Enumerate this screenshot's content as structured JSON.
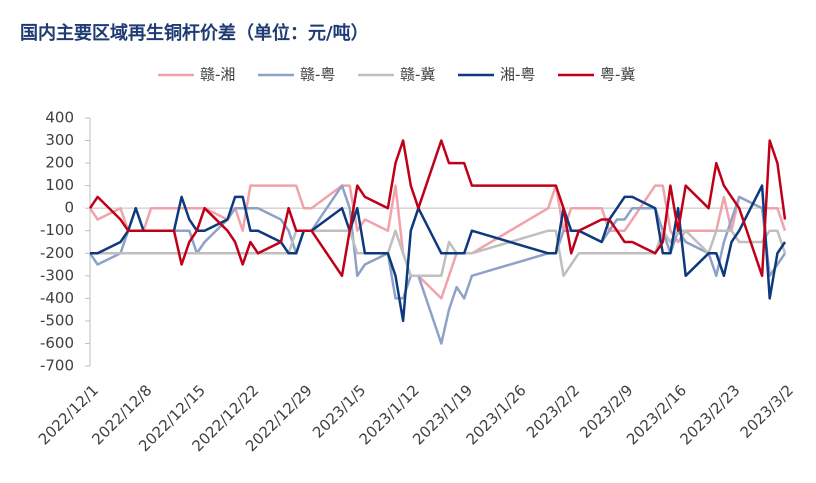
{
  "chart_data": {
    "type": "line",
    "title": "国内主要区域再生铜杆价差（单位：元/吨）",
    "x": [
      "2022/12/1",
      "2022/12/2",
      "2022/12/5",
      "2022/12/6",
      "2022/12/7",
      "2022/12/8",
      "2022/12/9",
      "2022/12/12",
      "2022/12/13",
      "2022/12/14",
      "2022/12/15",
      "2022/12/16",
      "2022/12/19",
      "2022/12/20",
      "2022/12/21",
      "2022/12/22",
      "2022/12/23",
      "2022/12/26",
      "2022/12/27",
      "2022/12/28",
      "2022/12/29",
      "2022/12/30",
      "2023/1/3",
      "2023/1/4",
      "2023/1/5",
      "2023/1/6",
      "2023/1/9",
      "2023/1/10",
      "2023/1/11",
      "2023/1/12",
      "2023/1/13",
      "2023/1/16",
      "2023/1/17",
      "2023/1/18",
      "2023/1/19",
      "2023/1/20",
      "2023/1/30",
      "2023/1/31",
      "2023/2/1",
      "2023/2/2",
      "2023/2/3",
      "2023/2/6",
      "2023/2/7",
      "2023/2/8",
      "2023/2/9",
      "2023/2/10",
      "2023/2/13",
      "2023/2/14",
      "2023/2/15",
      "2023/2/16",
      "2023/2/17",
      "2023/2/20",
      "2023/2/21",
      "2023/2/22",
      "2023/2/23",
      "2023/2/24",
      "2023/2/27",
      "2023/2/28",
      "2023/3/1",
      "2023/3/2"
    ],
    "series": [
      {
        "name": "赣-湘",
        "color": "#f0a3ab",
        "values": [
          0,
          -50,
          0,
          -100,
          -100,
          -100,
          0,
          0,
          0,
          0,
          0,
          0,
          -50,
          0,
          -100,
          100,
          100,
          100,
          100,
          100,
          0,
          0,
          100,
          100,
          -100,
          -50,
          -100,
          100,
          -200,
          -300,
          -300,
          -400,
          -300,
          -200,
          -200,
          -200,
          0,
          100,
          -100,
          0,
          0,
          0,
          -100,
          -100,
          -100,
          -50,
          100,
          100,
          -100,
          -150,
          -100,
          -100,
          -100,
          50,
          -100,
          50,
          0,
          0,
          0,
          -100
        ]
      },
      {
        "name": "赣-粤",
        "color": "#8ea2c8",
        "values": [
          -200,
          -250,
          -200,
          -100,
          -100,
          -100,
          -100,
          -100,
          -100,
          -100,
          -200,
          -150,
          -50,
          0,
          0,
          0,
          0,
          -50,
          -100,
          -200,
          -100,
          -100,
          100,
          0,
          -300,
          -250,
          -200,
          -400,
          -400,
          -300,
          -300,
          -600,
          -450,
          -350,
          -400,
          -300,
          -200,
          -200,
          -100,
          -100,
          -100,
          -150,
          -100,
          -50,
          -50,
          0,
          0,
          -100,
          -200,
          -100,
          -150,
          -200,
          -300,
          -150,
          -50,
          50,
          0,
          -300,
          -250,
          -200
        ]
      },
      {
        "name": "赣-冀",
        "color": "#bfbfbf",
        "values": [
          -200,
          -200,
          -200,
          -200,
          -200,
          -200,
          -200,
          -200,
          -200,
          -200,
          -200,
          -200,
          -200,
          -200,
          -200,
          -200,
          -200,
          -200,
          -200,
          -100,
          -100,
          -100,
          -100,
          -100,
          -200,
          -200,
          -200,
          -100,
          -200,
          -300,
          -300,
          -300,
          -150,
          -200,
          -200,
          -200,
          -100,
          -100,
          -300,
          -250,
          -200,
          -200,
          -200,
          -200,
          -200,
          -200,
          -200,
          -100,
          -150,
          -100,
          -100,
          -200,
          -100,
          -100,
          -100,
          -150,
          -150,
          -100,
          -100,
          -200
        ]
      },
      {
        "name": "湘-粤",
        "color": "#0d3a7c",
        "values": [
          -200,
          -200,
          -150,
          -100,
          0,
          -100,
          -100,
          -100,
          50,
          -50,
          -100,
          -100,
          -50,
          50,
          50,
          -100,
          -100,
          -150,
          -200,
          -200,
          -100,
          -100,
          0,
          -100,
          0,
          -200,
          -200,
          -300,
          -500,
          -100,
          0,
          -200,
          -200,
          -200,
          -200,
          -100,
          -200,
          -200,
          0,
          -100,
          -100,
          -150,
          -50,
          0,
          50,
          50,
          0,
          -200,
          -200,
          0,
          -300,
          -200,
          -200,
          -300,
          -150,
          -100,
          100,
          -400,
          -200,
          -150
        ]
      },
      {
        "name": "粤-冀",
        "color": "#c00018",
        "values": [
          0,
          50,
          -50,
          -100,
          -100,
          -100,
          -100,
          -100,
          -250,
          -150,
          -100,
          0,
          -100,
          -150,
          -250,
          -150,
          -200,
          -150,
          0,
          -100,
          -100,
          -100,
          -300,
          -100,
          100,
          50,
          0,
          200,
          300,
          100,
          0,
          300,
          200,
          200,
          200,
          100,
          100,
          100,
          0,
          -200,
          -100,
          -50,
          -50,
          -100,
          -150,
          -150,
          -200,
          -150,
          100,
          -100,
          100,
          0,
          200,
          100,
          50,
          0,
          -300,
          300,
          200,
          -50
        ]
      }
    ],
    "xlim": [
      "2022/12/1",
      "2023/3/2"
    ],
    "xticks": [
      "2022/12/1",
      "2022/12/8",
      "2022/12/15",
      "2022/12/22",
      "2022/12/29",
      "2023/1/5",
      "2023/1/12",
      "2023/1/19",
      "2023/1/26",
      "2023/2/2",
      "2023/2/9",
      "2023/2/16",
      "2023/2/23",
      "2023/3/2"
    ],
    "ylim": [
      -700,
      400
    ],
    "yticks": [
      -700,
      -600,
      -500,
      -400,
      -300,
      -200,
      -100,
      0,
      100,
      200,
      300,
      400
    ]
  }
}
